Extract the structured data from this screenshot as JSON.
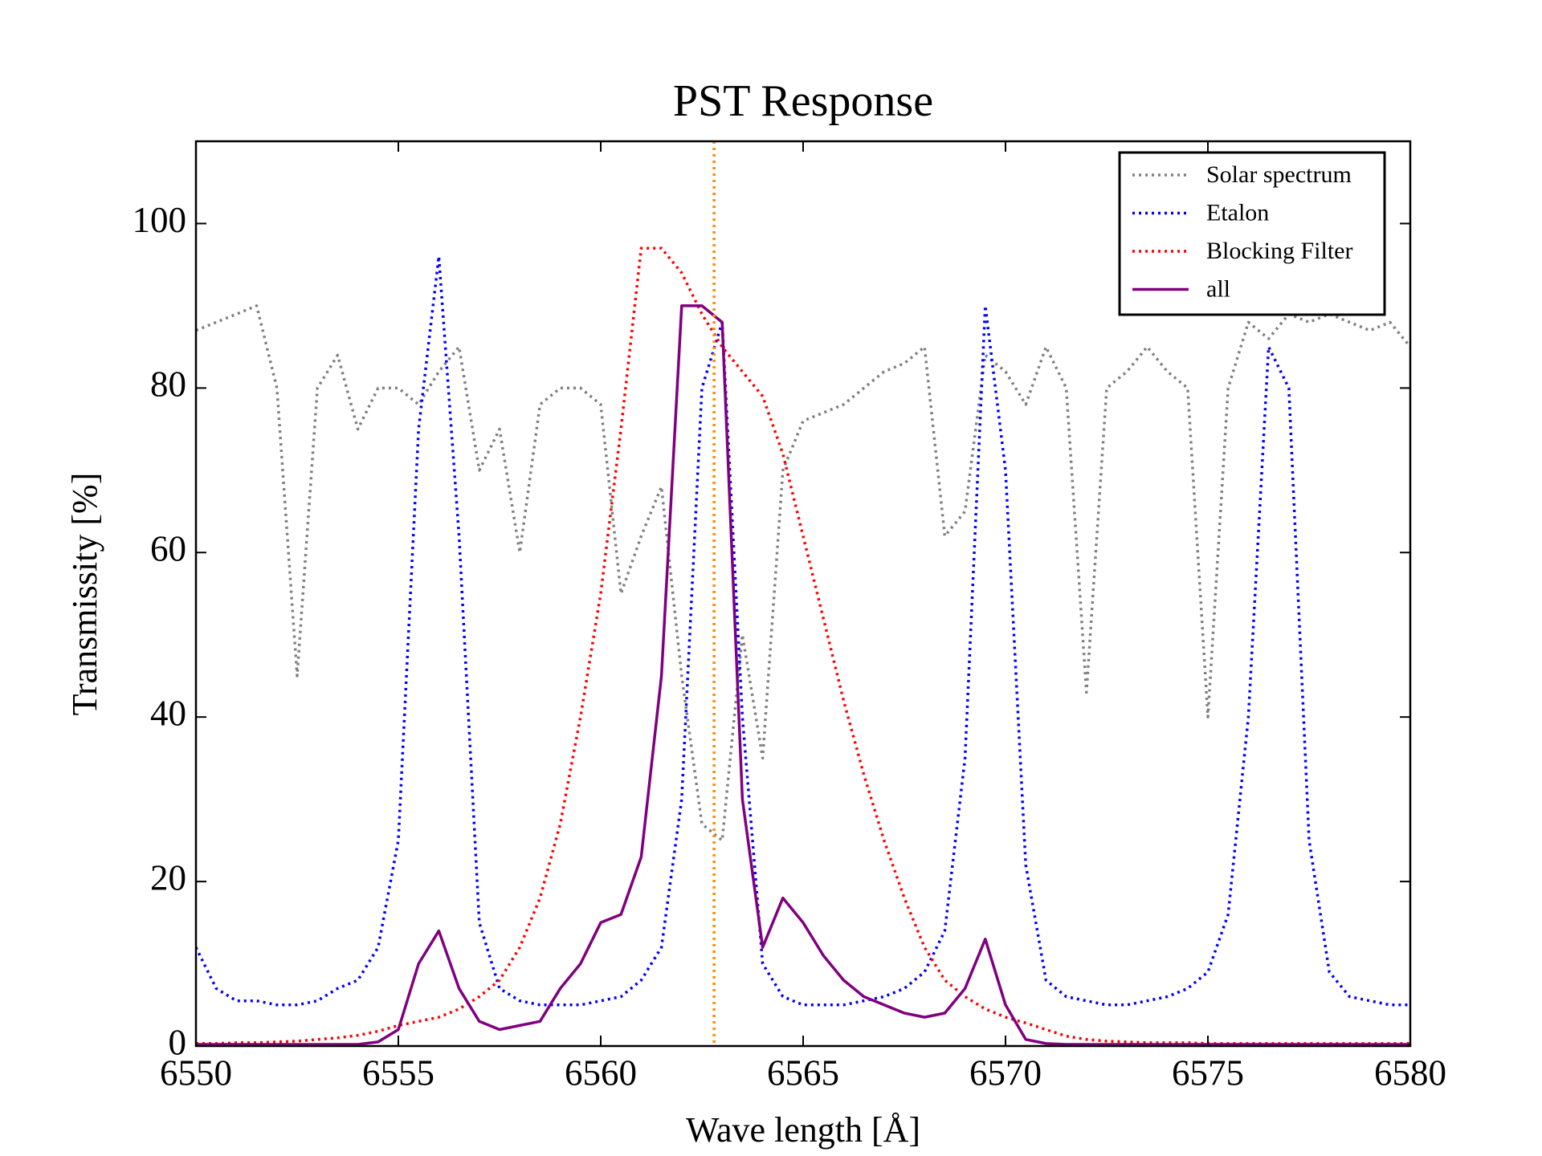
{
  "chart_data": {
    "type": "line",
    "title": "PST Response",
    "x_label": "Wave length [Å]",
    "y_label": "Transmissity [%]",
    "xlim": [
      6550,
      6580
    ],
    "ylim": [
      0,
      110
    ],
    "xticks": [
      6550,
      6555,
      6560,
      6565,
      6570,
      6575,
      6580
    ],
    "yticks": [
      0,
      20,
      40,
      60,
      80,
      100
    ],
    "legend": "upper right",
    "vline": {
      "value": 6562.8,
      "color": "#ff8c00",
      "style": "dotted"
    },
    "x": [
      6550,
      6550.5,
      6551,
      6551.5,
      6552,
      6552.5,
      6553,
      6553.5,
      6554,
      6554.5,
      6555,
      6555.5,
      6556,
      6556.5,
      6557,
      6557.5,
      6558,
      6558.5,
      6559,
      6559.5,
      6560,
      6560.5,
      6561,
      6561.5,
      6562,
      6562.5,
      6563,
      6563.5,
      6564,
      6564.5,
      6565,
      6565.5,
      6566,
      6566.5,
      6567,
      6567.5,
      6568,
      6568.5,
      6569,
      6569.5,
      6570,
      6570.5,
      6571,
      6571.5,
      6572,
      6572.5,
      6573,
      6573.5,
      6574,
      6574.5,
      6575,
      6575.5,
      6576,
      6576.5,
      6577,
      6577.5,
      6578,
      6578.5,
      6579,
      6579.5,
      6580
    ],
    "series": [
      {
        "name": "Solar spectrum",
        "color": "#808080",
        "style": "dotted",
        "values": [
          87,
          88,
          89,
          90,
          80,
          45,
          80,
          84,
          75,
          80,
          80,
          78,
          82,
          85,
          70,
          75,
          60,
          78,
          80,
          80,
          78,
          55,
          62,
          68,
          45,
          27,
          25,
          50,
          35,
          70,
          76,
          77,
          78,
          80,
          82,
          83,
          85,
          62,
          65,
          84,
          82,
          78,
          85,
          80,
          43,
          80,
          82,
          85,
          82,
          80,
          40,
          80,
          88,
          86,
          89,
          88,
          89,
          88,
          87,
          88,
          85
        ]
      },
      {
        "name": "Etalon",
        "color": "#0000ff",
        "style": "dotted",
        "values": [
          12,
          7,
          5.5,
          5.5,
          5,
          5,
          5.5,
          7,
          8,
          12,
          25,
          75,
          96,
          62,
          15,
          7,
          5.5,
          5,
          5,
          5,
          5.5,
          6,
          8,
          12,
          30,
          80,
          88,
          40,
          10,
          6,
          5,
          5,
          5,
          5.5,
          6,
          7,
          9,
          14,
          35,
          90,
          70,
          22,
          8,
          6,
          5.5,
          5,
          5,
          5.5,
          6,
          7,
          9,
          16,
          40,
          85,
          80,
          25,
          9,
          6,
          5.5,
          5,
          5
        ]
      },
      {
        "name": "Blocking Filter",
        "color": "#ff0000",
        "style": "dotted",
        "values": [
          0.3,
          0.3,
          0.4,
          0.4,
          0.5,
          0.6,
          0.8,
          1,
          1.3,
          1.8,
          2.5,
          3,
          3.5,
          4.5,
          6,
          8,
          12,
          18,
          27,
          40,
          55,
          75,
          97,
          97,
          94,
          89,
          85,
          82,
          79,
          72,
          62,
          52,
          42,
          33,
          25,
          18,
          12,
          8,
          6,
          4.5,
          3.5,
          2.8,
          2,
          1.2,
          0.8,
          0.6,
          0.5,
          0.4,
          0.4,
          0.4,
          0.3,
          0.3,
          0.3,
          0.3,
          0.3,
          0.3,
          0.3,
          0.3,
          0.3,
          0.3,
          0.3
        ]
      },
      {
        "name": "all",
        "color": "#800080",
        "style": "solid",
        "values": [
          0.2,
          0.2,
          0.2,
          0.2,
          0.2,
          0.2,
          0.2,
          0.2,
          0.2,
          0.5,
          2,
          10,
          14,
          7,
          3,
          2,
          2.5,
          3,
          7,
          10,
          15,
          16,
          23,
          45,
          90,
          90,
          88,
          30,
          12,
          18,
          15,
          11,
          8,
          6,
          5,
          4,
          3.5,
          4,
          7,
          13,
          5,
          0.8,
          0.3,
          0.2,
          0.2,
          0.2,
          0.2,
          0.2,
          0.2,
          0.2,
          0.2,
          0.2,
          0.2,
          0.2,
          0.2,
          0.2,
          0.2,
          0.2,
          0.2,
          0.2,
          0.2
        ]
      }
    ]
  }
}
